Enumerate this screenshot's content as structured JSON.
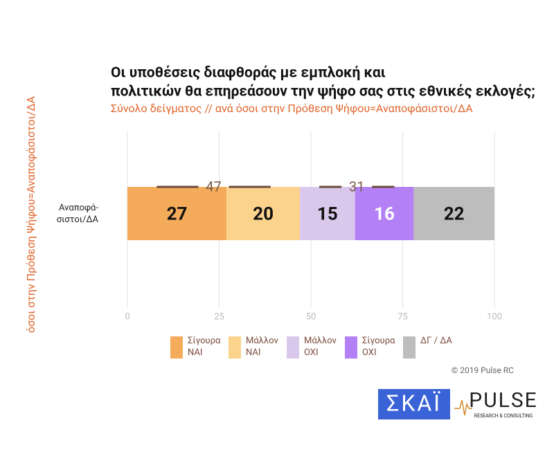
{
  "chart_data": {
    "type": "stacked-bar-horizontal",
    "title": "Οι υποθέσεις διαφθοράς με εμπλοκή και πολιτικών θα επηρεάσουν την ψήφο σας στις εθνικές εκλογές;",
    "subtitle": "Σύνολο δείγματος // ανά όσοι στην Πρόθεση Ψήφου=Αναποφάσιστοι/ΔΑ",
    "y_label": "όσοι στην Πρόθεση Ψήφου=Αναποφάσιστοι/ΔΑ",
    "categories": [
      "Αναποφά-σιστοι/ΔΑ"
    ],
    "series": [
      {
        "name": "Σίγουρα ΝΑΙ",
        "color": "#f4ab5a",
        "values": [
          27
        ]
      },
      {
        "name": "Μάλλον ΝΑΙ",
        "color": "#fbd38d",
        "values": [
          20
        ]
      },
      {
        "name": "Μάλλον ΟΧΙ",
        "color": "#d9c8ec",
        "values": [
          15
        ]
      },
      {
        "name": "Σίγουρα ΟΧΙ",
        "color": "#b381f5",
        "values": [
          16
        ]
      },
      {
        "name": "ΔΓ / ΔΑ",
        "color": "#bdbdbd",
        "values": [
          22
        ]
      }
    ],
    "totals": [
      47,
      31
    ],
    "xlim": [
      0,
      100
    ],
    "xticks": [
      0,
      25,
      50,
      75,
      100
    ],
    "copyright": "© 2019 Pulse RC",
    "logos": [
      "ΣΚΑΪ",
      "PULSE",
      "RESEARCH & CONSULTING"
    ]
  }
}
